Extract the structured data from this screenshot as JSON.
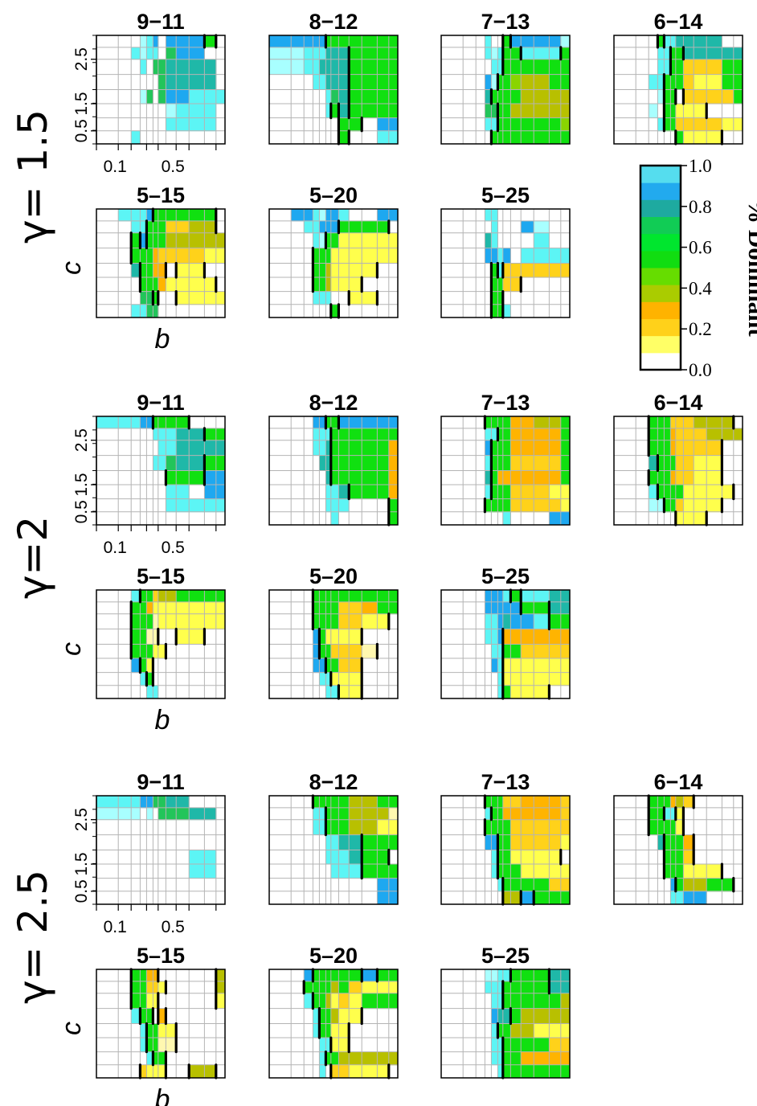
{
  "chart_data": {
    "type": "heatmap",
    "description_values": "cell value = fraction of simulations in which the strategy is dominant",
    "x_axis_label": "b",
    "y_axis_label": "c",
    "x_ticks": [
      "0.1",
      "0.5"
    ],
    "y_ticks": [
      "0.5",
      "1.5",
      "2.5"
    ],
    "colorbar": {
      "title": "% Dominant",
      "ticks": [
        "0.0",
        "0.2",
        "0.4",
        "0.6",
        "0.8",
        "1.0"
      ],
      "colors": [
        "#ffffff",
        "#ffff66",
        "#ffd11a",
        "#ffb300",
        "#aacc00",
        "#66dd00",
        "#11dd11",
        "#00e62e",
        "#11cc55",
        "#1eaaa0",
        "#22aaee",
        "#55ddee"
      ]
    },
    "palette": {
      "a": "#5cf5f5",
      "b": "#1ea8f0",
      "c": "#1fb8a8",
      "d": "#22c55a",
      "e": "#10e010",
      "f": "#8ad400",
      "g": "#b8c000",
      "h": "#ffb400",
      "i": "#ffd21a",
      "j": "#ffff4c",
      "k": "#fff8b0",
      "l": "#a8ffff",
      "m": "#2fc4ff"
    },
    "groups": [
      {
        "label": "γ= 1.5",
        "panels": [
          {
            "title": "9−11",
            "rows": [
              "   lab bbbe ",
              "  alaa dbb  ",
              "   a ddcccc ",
              "      dcccc ",
              "   ld dbbaaa",
              "       laaa ",
              "       aaaa ",
              "  a         "
            ]
          },
          {
            "title": "8−12",
            "rows": [
              "bbbbbeeeeeee",
              "llaaaccceeee",
              "llaacccceeee",
              "   aaccceeee",
              "     adceeee",
              "     aeceeee",
              "       ee bb",
              "       e  aa"
            ]
          },
          {
            "title": "7−13",
            "rows": [
              "   a  ebbbbl",
              "   alaeeaaae",
              "    aaeeeeee",
              "   bleefggee",
              "   ceeeegggg",
              "   ddeeggggg",
              "   aaeeeeeef",
              "    eeeeeeee"
            ]
          },
          {
            "title": "6−14",
            "rows": [
              "   eaacccc  ",
              "   aaeeccccc",
              "   aaeeiiiee",
              "  aaeeeijjee",
              "   lee iiiiee",
              "  l eejjj  ",
              "   aeeiiiijj",
              "      ejjj  "
            ]
          },
          {
            "title": "5–15",
            "rows": [
              " aaabeeeeee ",
              "  aaeeeiigg ",
              "  ebeeeggggg",
              "  eeehiiiijj",
              "  ceehh jj  ",
              "   eeehjjjj ",
              "   dde  jjjj",
              "  aadd      "
            ]
          },
          {
            "title": "5–20",
            "rows": [
              " bbalbba  bb",
              "  aabbbeeee ",
              "   aleejjjjj",
              "   eeejjjjjj",
              "   eegjjjj  ",
              "   eegjjj   ",
              "   aaa  jj  ",
              "      e     "
            ]
          },
          {
            "title": "5–25",
            "rows": [
              "   aa       ",
              "    a   bl  ",
              "   ca    a  ",
              "   bbab aaaa",
              "    eaiiiiii",
              "    eeii    ",
              "    ee      ",
              "    eea     "
            ]
          }
        ]
      },
      {
        "label": "γ=2",
        "panels": [
          {
            "title": "9−11",
            "rows": [
              "aaabbeeee   ",
              "     aaaccee",
              "      aacccc",
              "     aadccee",
              "       eeebb",
              "       aa bb",
              "       aaaaa",
              "            "
            ]
          },
          {
            "title": "8−12",
            "rows": [
              "   bbeebbbbb",
              "   aaaeeeeee",
              "   aaceeeeeh",
              "    cceeeeeh",
              "     ceeeeeh",
              "     aaceeeh",
              "     aaa   ee",
              "      a    ee"
            ]
          },
          {
            "title": "7−13",
            "rows": [
              "   eeeehhgge",
              "   aaeehhhhe",
              "   beeehhhhe",
              "   aeeeiiiie",
              "   cehhhhhhe",
              "   aeeeiiijj",
              "   eeeeiiiij",
              "      a   bb"
            ]
          },
          {
            "title": "6−14",
            "rows": [
              "  eeeiiiggg ",
              "  eeehiiiggg",
              "  eeehiiii  ",
              "  ceeeiijj  ",
              "  eeehiijj  ",
              "  aeeeejjjj ",
              "  lleeijjj  ",
              "      jjj   "
            ]
          },
          {
            "title": "5–15",
            "rows": [
              "  aeeiggeeee",
              "  eehjjjjjjj",
              "  eeekjjjjjj",
              "  eekk  jj  ",
              "  eeejj     ",
              "  bej       ",
              "   ae       ",
              "    aa      "
            ]
          },
          {
            "title": "5–20",
            "rows": [
              "   eeeeeeeee",
              "   eeeeiihee",
              "   eeeeiijj ",
              "   bejjjj   ",
              "   beeiiik  ",
              "   bbeeii   ",
              "    aajjj   ",
              "     aajj   "
            ]
          },
          {
            "title": "5–25",
            "rows": [
              "   bbbaeaacc",
              "   bbbbbeecc",
              "   aabcbbaee",
              "   aabhhhhhh",
              "    aaeeiiii",
              "    bajjjjjj",
              "     ajjjjjj",
              "     aejjj  "
            ]
          }
        ]
      },
      {
        "label": "γ= 2.5",
        "panels": [
          {
            "title": "9−11",
            "rows": [
              "aaabbddcc   ",
              "lll l dddcc ",
              "            ",
              "            ",
              "         aa ",
              "         aa ",
              "            ",
              "            "
            ]
          },
          {
            "title": "8−12",
            "rows": [
              "   eeeeeggee",
              "   aaeeegggk",
              "   aaeeeggjj",
              "     aacceee",
              "     aaacee ",
              "      aaaeee",
              "          bb",
              "          bb"
            ]
          },
          {
            "title": "7−13",
            "rows": [
              "   eeeiihhhi",
              "   aeehhhhhi",
              "   eeeeiiiii",
              "   bbeeiiiij",
              "    aeejjjj ",
              "    aeeejjjj",
              "     aeeeeiii",
              "      ggbeee"
            ]
          },
          {
            "title": "6−14",
            "rows": [
              "  eeehgi    ",
              "  eeaaj     ",
              "  eeeej     ",
              "   ceeeh    ",
              "    eeei    ",
              "    eeejjj  ",
              "     beggee ",
              "     aabb   "
            ]
          },
          {
            "title": "5–15",
            "rows": [
              "  eehh     g",
              "  eeiij    g",
              "  eejj     j",
              "  aee h     ",
              "   aeejj    ",
              "   aeekk    ",
              "    aee     ",
              "   ijjj  gg "
            ]
          },
          {
            "title": "5–20",
            "rows": [
              "  beeeeeebee",
              "  eeeegeijjj",
              "  aeegjijeee",
              "   aeegjj   ",
              "   aeejj    ",
              "    aajj    ",
              "    aeeggggg",
              "    a iijjj "
            ]
          },
          {
            "title": "5–25",
            "rows": [
              "   llaaeeecc",
              "   aaaeeeeccc",
              "    aaeeeeeg",
              "    bcceggggg",
              "    aeeggjjjj",
              "    aaeeeeii ",
              "    aaeehhhh ",
              "     aeeeeee "
            ]
          }
        ]
      }
    ]
  }
}
